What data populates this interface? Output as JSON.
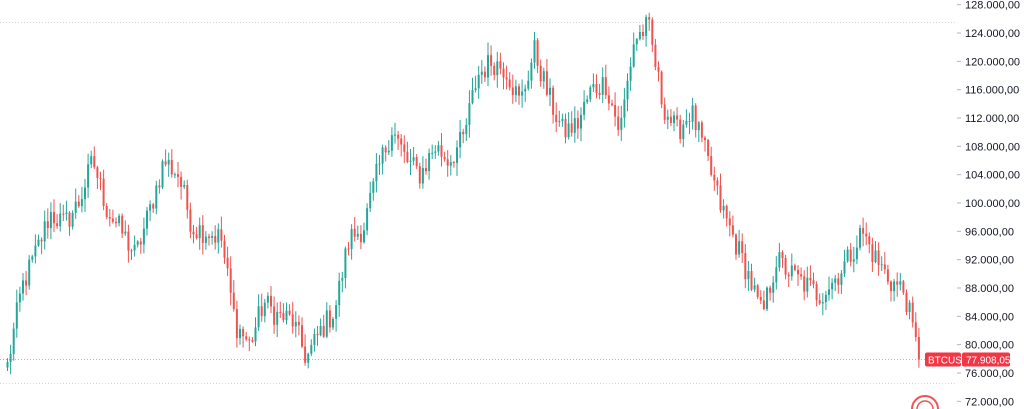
{
  "chart_data": {
    "type": "candlestick",
    "symbol": "BTCUSD",
    "last_price": 77908.05,
    "last_price_label": "77.908,05",
    "ylim": [
      71000,
      129000
    ],
    "y_ticks": [
      {
        "value": 128000,
        "label": "128.000,00"
      },
      {
        "value": 124000,
        "label": "124.000,00"
      },
      {
        "value": 120000,
        "label": "120.000,00"
      },
      {
        "value": 116000,
        "label": "116.000,00"
      },
      {
        "value": 112000,
        "label": "112.000,00"
      },
      {
        "value": 108000,
        "label": "108.000,00"
      },
      {
        "value": 104000,
        "label": "104.000,00"
      },
      {
        "value": 100000,
        "label": "100.000,00"
      },
      {
        "value": 96000,
        "label": "96.000,00"
      },
      {
        "value": 92000,
        "label": "92.000,00"
      },
      {
        "value": 88000,
        "label": "88.000,00"
      },
      {
        "value": 84000,
        "label": "84.000,00"
      },
      {
        "value": 80000,
        "label": "80.000,00"
      },
      {
        "value": 76000,
        "label": "76.000,00"
      },
      {
        "value": 72000,
        "label": "72.000,00"
      }
    ],
    "reference_lines": [
      125600,
      74600,
      77908.05
    ],
    "close_path": [
      77000,
      88000,
      93000,
      98500,
      97000,
      100000,
      106000,
      99000,
      96000,
      92500,
      99000,
      106000,
      104000,
      96500,
      96000,
      95000,
      83000,
      80000,
      86000,
      84000,
      83500,
      78000,
      82000,
      85000,
      95000,
      96500,
      104500,
      110500,
      106000,
      104000,
      108000,
      106000,
      109000,
      118000,
      120000,
      119000,
      114000,
      121500,
      115000,
      110000,
      111000,
      116000,
      117000,
      110000,
      123000,
      125000,
      114000,
      110000,
      113000,
      107000,
      100000,
      95000,
      90000,
      84000,
      92000,
      90000,
      88500,
      87000,
      89000,
      92000,
      96000,
      92000,
      89000,
      87500,
      77908.05
    ],
    "colors": {
      "up": "#26a69a",
      "down": "#ef5350",
      "grid": "#d1d4dc",
      "axis_text": "#131722",
      "price_tag": "#f23645"
    }
  }
}
